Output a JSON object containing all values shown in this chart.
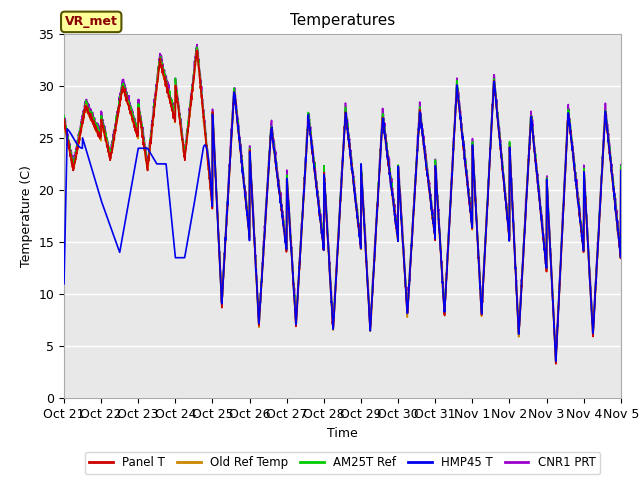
{
  "title": "Temperatures",
  "xlabel": "Time",
  "ylabel": "Temperature (C)",
  "ylim": [
    0,
    35
  ],
  "xlim": [
    0,
    360
  ],
  "background_color": "#ffffff",
  "plot_bg_color": "#e8e8e8",
  "grid_color": "#ffffff",
  "annotation_text": "VR_met",
  "annotation_bg": "#ffff99",
  "annotation_border": "#8B0000",
  "xtick_labels": [
    "Oct 21",
    "Oct 22",
    "Oct 23",
    "Oct 24",
    "Oct 25",
    "Oct 26",
    "Oct 27",
    "Oct 28",
    "Oct 29",
    "Oct 30",
    "Oct 31",
    "Nov 1",
    "Nov 2",
    "Nov 3",
    "Nov 4",
    "Nov 5"
  ],
  "xtick_positions": [
    0,
    24,
    48,
    72,
    96,
    120,
    144,
    168,
    192,
    216,
    240,
    264,
    288,
    312,
    336,
    360
  ],
  "legend_labels": [
    "Panel T",
    "Old Ref Temp",
    "AM25T Ref",
    "HMP45 T",
    "CNR1 PRT"
  ],
  "line_colors": [
    "#cc0000",
    "#cc8800",
    "#00cc00",
    "#0000ee",
    "#9900cc"
  ],
  "figsize": [
    6.4,
    4.8
  ],
  "dpi": 100
}
